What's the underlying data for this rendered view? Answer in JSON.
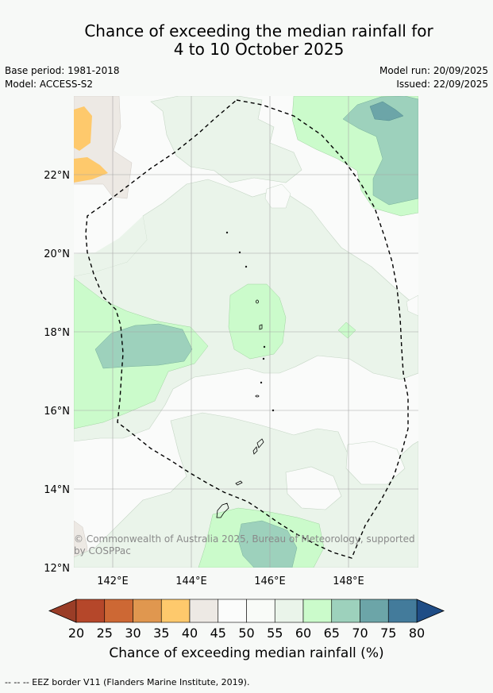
{
  "title": {
    "line1": "Chance of exceeding the median rainfall for",
    "line2": "4 to 10 October 2025"
  },
  "meta": {
    "base_period": "Base period: 1981-2018",
    "model": "Model: ACCESS-S2",
    "model_run": "Model run: 20/09/2025",
    "issued": "Issued: 22/09/2025"
  },
  "axes": {
    "lat_labels": [
      "22°N",
      "20°N",
      "18°N",
      "16°N",
      "14°N",
      "12°N"
    ],
    "lon_labels": [
      "142°E",
      "144°E",
      "146°E",
      "148°E"
    ]
  },
  "copyright": "© Commonwealth of Australia 2025, Bureau of Meteorology, supported by COSPPac",
  "colorbar": {
    "ticks": [
      "20",
      "25",
      "30",
      "35",
      "40",
      "45",
      "50",
      "55",
      "60",
      "65",
      "70",
      "75",
      "80"
    ],
    "colors": [
      "#b5472a",
      "#cd6834",
      "#e0974f",
      "#fec96c",
      "#ede9e4",
      "#fbfcfb",
      "#f9fbf8",
      "#eaf4ea",
      "#cbfbcb",
      "#9dd1bc",
      "#6ca5a8",
      "#437b9b"
    ],
    "under_color": "#9a3d27",
    "over_color": "#1f4d86",
    "label": "Chance of exceeding median rainfall (%)"
  },
  "footer": "--  --  -- EEZ border V11 (Flanders Marine Institute, 2019)."
}
